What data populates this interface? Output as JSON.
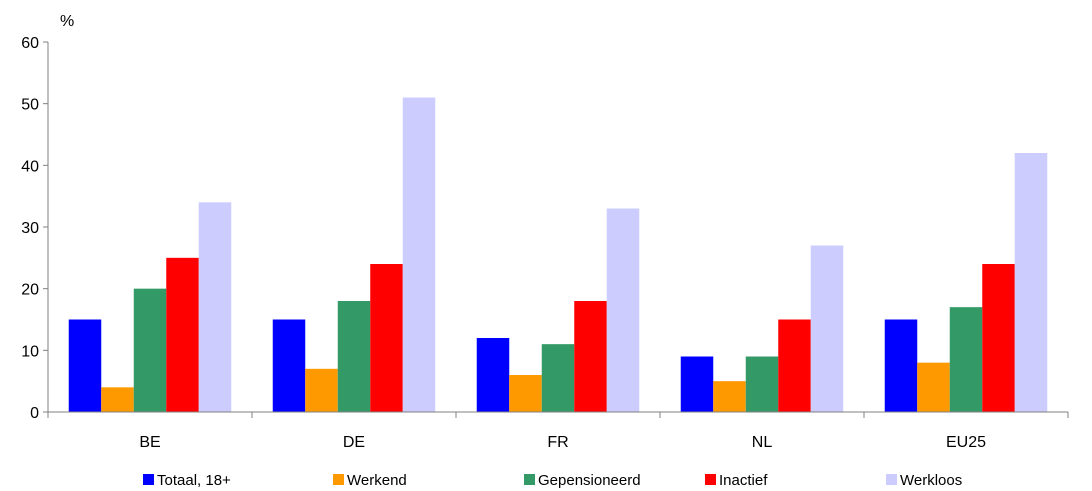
{
  "chart_data": {
    "type": "bar",
    "ylabel": "%",
    "ylim": [
      0,
      60
    ],
    "yticks": [
      0,
      10,
      20,
      30,
      40,
      50,
      60
    ],
    "grid": false,
    "legend_position": "bottom",
    "categories": [
      "BE",
      "DE",
      "FR",
      "NL",
      "EU25"
    ],
    "series": [
      {
        "name": "Totaal, 18+",
        "color": "#0000FF",
        "values": [
          15,
          15,
          12,
          9,
          15
        ]
      },
      {
        "name": "Werkend",
        "color": "#FF9900",
        "values": [
          4,
          7,
          6,
          5,
          8
        ]
      },
      {
        "name": "Gepensioneerd",
        "color": "#339966",
        "values": [
          20,
          18,
          11,
          9,
          17
        ]
      },
      {
        "name": "Inactief",
        "color": "#FF0000",
        "values": [
          25,
          24,
          18,
          15,
          24
        ]
      },
      {
        "name": "Werkloos",
        "color": "#CCCCFF",
        "values": [
          34,
          51,
          33,
          27,
          42
        ]
      }
    ]
  }
}
